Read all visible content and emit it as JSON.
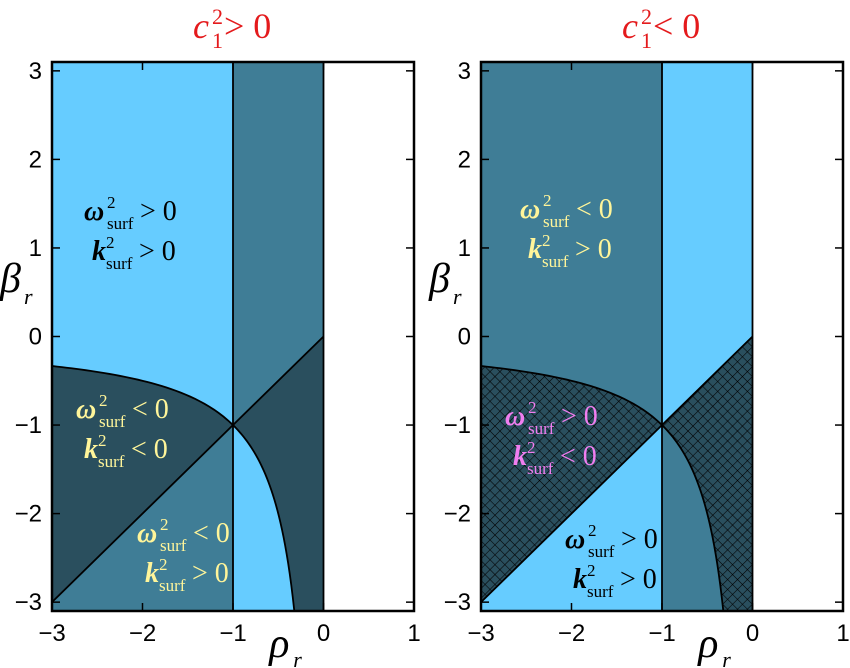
{
  "colors": {
    "light": "#66ccff",
    "mid": "#3f7d96",
    "dark": "#2a4f5e",
    "white": "#ffffff",
    "title_red": "#e41a1c",
    "yellow": "#fff59a",
    "pink": "#f07ef0",
    "black": "#000000"
  },
  "chart_data": [
    {
      "type": "area",
      "title": {
        "main": "c",
        "sup": "2",
        "sub": "1",
        "rel": " > 0"
      },
      "xlabel": {
        "main": "ρ",
        "sub": "r"
      },
      "ylabel": {
        "main": "β",
        "sub": "r"
      },
      "xlim": [
        -3,
        1
      ],
      "ylim": [
        -3.1,
        3.1
      ],
      "xticks": [
        -3,
        -2,
        -1,
        0,
        1
      ],
      "yticks": [
        3,
        2,
        1,
        0,
        -1,
        -2,
        -3
      ],
      "boundaries": {
        "vertical_lines": [
          -1,
          0
        ],
        "diagonal": "β = ρ",
        "curve": "β = 1/ρ"
      },
      "regions": [
        {
          "id": "upper-left",
          "fill": "light",
          "omega_sign": ">",
          "k_sign": ">",
          "label_color": "black",
          "label_pos": [
            -2.0,
            1.0
          ]
        },
        {
          "id": "middle-band",
          "fill": "mid"
        },
        {
          "id": "lower-left",
          "fill": "dark",
          "omega_sign": "<",
          "k_sign": "<",
          "label_color": "yellow",
          "label_pos": [
            -2.5,
            -1.0
          ]
        },
        {
          "id": "bottom-triangle",
          "fill": "mid",
          "omega_sign": "<",
          "k_sign": ">",
          "label_color": "yellow",
          "label_pos": [
            -1.6,
            -2.2
          ]
        },
        {
          "id": "band-lower-light",
          "fill": "light"
        },
        {
          "id": "band-dark-wedge",
          "fill": "dark"
        }
      ],
      "labels": [
        {
          "omega_sign": ">",
          "k_sign": ">",
          "color": "black"
        },
        {
          "omega_sign": "<",
          "k_sign": "<",
          "color": "yellow"
        },
        {
          "omega_sign": "<",
          "k_sign": ">",
          "color": "yellow"
        }
      ]
    },
    {
      "type": "area",
      "title": {
        "main": "c",
        "sup": "2",
        "sub": "1",
        "rel": " < 0"
      },
      "xlabel": {
        "main": "ρ",
        "sub": "r"
      },
      "ylabel": {
        "main": "β",
        "sub": "r"
      },
      "xlim": [
        -3,
        1
      ],
      "ylim": [
        -3.1,
        3.1
      ],
      "xticks": [
        -3,
        -2,
        -1,
        0,
        1
      ],
      "yticks": [
        3,
        2,
        1,
        0,
        -1,
        -2,
        -3
      ],
      "boundaries": {
        "vertical_lines": [
          -1,
          0
        ],
        "diagonal": "β = ρ",
        "curve": "β = 1/ρ"
      },
      "regions": [
        {
          "id": "upper-left",
          "fill": "mid",
          "omega_sign": "<",
          "k_sign": ">",
          "label_color": "yellow"
        },
        {
          "id": "middle-band",
          "fill": "light"
        },
        {
          "id": "lower-left-hatched",
          "fill": "hatched",
          "omega_sign": ">",
          "k_sign": "<",
          "label_color": "pink"
        },
        {
          "id": "bottom-triangle",
          "fill": "light",
          "omega_sign": ">",
          "k_sign": ">",
          "label_color": "black"
        },
        {
          "id": "band-lower-mid",
          "fill": "mid"
        },
        {
          "id": "band-hatched-wedge",
          "fill": "hatched"
        }
      ],
      "labels": [
        {
          "omega_sign": "<",
          "k_sign": ">",
          "color": "yellow"
        },
        {
          "omega_sign": ">",
          "k_sign": "<",
          "color": "pink"
        },
        {
          "omega_sign": ">",
          "k_sign": ">",
          "color": "black"
        }
      ]
    }
  ],
  "symbols": {
    "omega": "ω",
    "k": "k",
    "sup": "2",
    "sub": "surf",
    "zero": "0"
  }
}
